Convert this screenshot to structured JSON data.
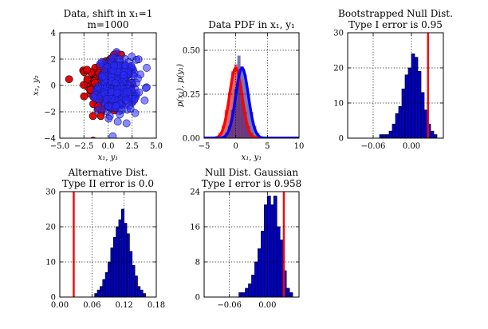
{
  "chart_data": [
    {
      "type": "scatter",
      "title_lines": [
        "Data, shift in x₁=1",
        "m=1000"
      ],
      "xlabel": "x₁, y₁",
      "ylabel": "x₂, y₂",
      "xlim": [
        -5.0,
        5.0
      ],
      "ylim": [
        -4,
        4
      ],
      "xticks": [
        -5.0,
        -2.5,
        0.0,
        2.5,
        5.0
      ],
      "xtick_labels": [
        "−5.0",
        "−2.5",
        "0.0",
        "2.5",
        "5.0"
      ],
      "yticks": [
        -4,
        -2,
        0,
        2,
        4
      ],
      "ytick_labels": [
        "−4",
        "−2",
        "0",
        "2",
        "4"
      ],
      "grid": true,
      "series": [
        {
          "color": "#e00000",
          "center": [
            0.0,
            0.0
          ],
          "spread": [
            1.0,
            1.0
          ]
        },
        {
          "color": "#2a2aff",
          "center": [
            1.0,
            0.0
          ],
          "spread": [
            1.0,
            1.0
          ]
        }
      ]
    },
    {
      "type": "line",
      "title": "Data PDF in x₁, y₁",
      "xlabel": "x₁, y₁",
      "ylabel": "p(x₁), p(y₁)",
      "xlim": [
        -5,
        10
      ],
      "ylim": [
        0,
        0.6
      ],
      "xticks": [
        -5,
        0,
        5,
        10
      ],
      "xtick_labels": [
        "−5",
        "0",
        "5",
        "10"
      ],
      "yticks": [
        0.0,
        0.25,
        0.5
      ],
      "ytick_labels": [
        "0.00",
        "0.25",
        "0.50"
      ],
      "grid": true,
      "series": [
        {
          "color": "#ff0000",
          "mean": 0.0,
          "sd": 1.0
        },
        {
          "color": "#0000ff",
          "mean": 1.0,
          "sd": 1.0
        }
      ],
      "histograms": [
        {
          "color": "#cc0000",
          "x": [
            -3.0,
            -2.5,
            -2.0,
            -1.5,
            -1.0,
            -0.5,
            0.0,
            0.5,
            1.0,
            1.5,
            2.0,
            2.5,
            3.0
          ],
          "values": [
            0.01,
            0.03,
            0.07,
            0.16,
            0.26,
            0.38,
            0.42,
            0.36,
            0.26,
            0.15,
            0.07,
            0.03,
            0.01
          ]
        },
        {
          "color": "#1a1a8c",
          "x": [
            -2.0,
            -1.5,
            -1.0,
            -0.5,
            0.0,
            0.5,
            1.0,
            1.5,
            2.0,
            2.5,
            3.0,
            3.5,
            4.0
          ],
          "values": [
            0.01,
            0.03,
            0.07,
            0.16,
            0.28,
            0.47,
            0.41,
            0.36,
            0.25,
            0.15,
            0.07,
            0.03,
            0.01
          ]
        }
      ]
    },
    {
      "type": "bar",
      "title_lines": [
        "Bootstrapped Null Dist.",
        "Type I error is 0.95"
      ],
      "xlim": [
        -0.1,
        0.05
      ],
      "ylim": [
        0,
        30
      ],
      "xticks": [
        -0.06,
        0.0
      ],
      "xtick_labels": [
        "−0.06",
        "0.00"
      ],
      "yticks": [
        0,
        10,
        20,
        30
      ],
      "ytick_labels": [
        "0",
        "10",
        "20",
        "30"
      ],
      "grid": true,
      "bin_width": 0.005,
      "x": [
        -0.0475,
        -0.0425,
        -0.0375,
        -0.0325,
        -0.0275,
        -0.0225,
        -0.0175,
        -0.0125,
        -0.0075,
        -0.0025,
        0.0025,
        0.0075,
        0.0125,
        0.0175,
        0.0225,
        0.0275,
        0.0325,
        0.0375
      ],
      "values": [
        1,
        1,
        1,
        2,
        4,
        7,
        9,
        14,
        18,
        20,
        24,
        23,
        19,
        13,
        8,
        4,
        2,
        1
      ],
      "threshold": 0.026,
      "threshold_color": "#ff0000",
      "bar_color": "#0000cd"
    },
    {
      "type": "bar",
      "title_lines": [
        "Alternative Dist.",
        "Type II error is 0.0"
      ],
      "xlim": [
        0.0,
        0.18
      ],
      "ylim": [
        0,
        30
      ],
      "xticks": [
        0.0,
        0.06,
        0.12,
        0.18
      ],
      "xtick_labels": [
        "0.00",
        "0.06",
        "0.12",
        "0.18"
      ],
      "yticks": [
        0,
        10,
        20,
        30
      ],
      "ytick_labels": [
        "0",
        "10",
        "20",
        "30"
      ],
      "grid": true,
      "bin_width": 0.005,
      "x": [
        0.0675,
        0.0725,
        0.0775,
        0.0825,
        0.0875,
        0.0925,
        0.0975,
        0.1025,
        0.1075,
        0.1125,
        0.1175,
        0.1225,
        0.1275,
        0.1325,
        0.1375,
        0.1425,
        0.1475,
        0.1525,
        0.1575
      ],
      "values": [
        1,
        2,
        3,
        5,
        7,
        10,
        14,
        17,
        20,
        22,
        25,
        21,
        18,
        13,
        9,
        6,
        3,
        2,
        1
      ],
      "threshold": 0.026,
      "threshold_color": "#ff0000",
      "bar_color": "#0000cd"
    },
    {
      "type": "bar",
      "title_lines": [
        "Null Dist. Gaussian",
        "Type I error is 0.958"
      ],
      "xlim": [
        -0.1,
        0.05
      ],
      "ylim": [
        0,
        24
      ],
      "xticks": [
        -0.06,
        0.0
      ],
      "xtick_labels": [
        "−0.06",
        "0.00"
      ],
      "yticks": [
        0,
        8,
        16,
        24
      ],
      "ytick_labels": [
        "0",
        "8",
        "16",
        "24"
      ],
      "grid": true,
      "bin_width": 0.005,
      "x": [
        -0.0425,
        -0.0375,
        -0.0325,
        -0.0275,
        -0.0225,
        -0.0175,
        -0.0125,
        -0.0075,
        -0.0025,
        0.0025,
        0.0075,
        0.0125,
        0.0175,
        0.0225,
        0.0275,
        0.0325,
        0.0375
      ],
      "values": [
        1,
        1,
        2,
        3,
        5,
        8,
        11,
        15,
        21,
        23,
        21,
        23,
        16,
        13,
        6,
        2,
        1
      ],
      "threshold": 0.026,
      "threshold_color": "#ff0000",
      "bar_color": "#0000cd"
    }
  ]
}
